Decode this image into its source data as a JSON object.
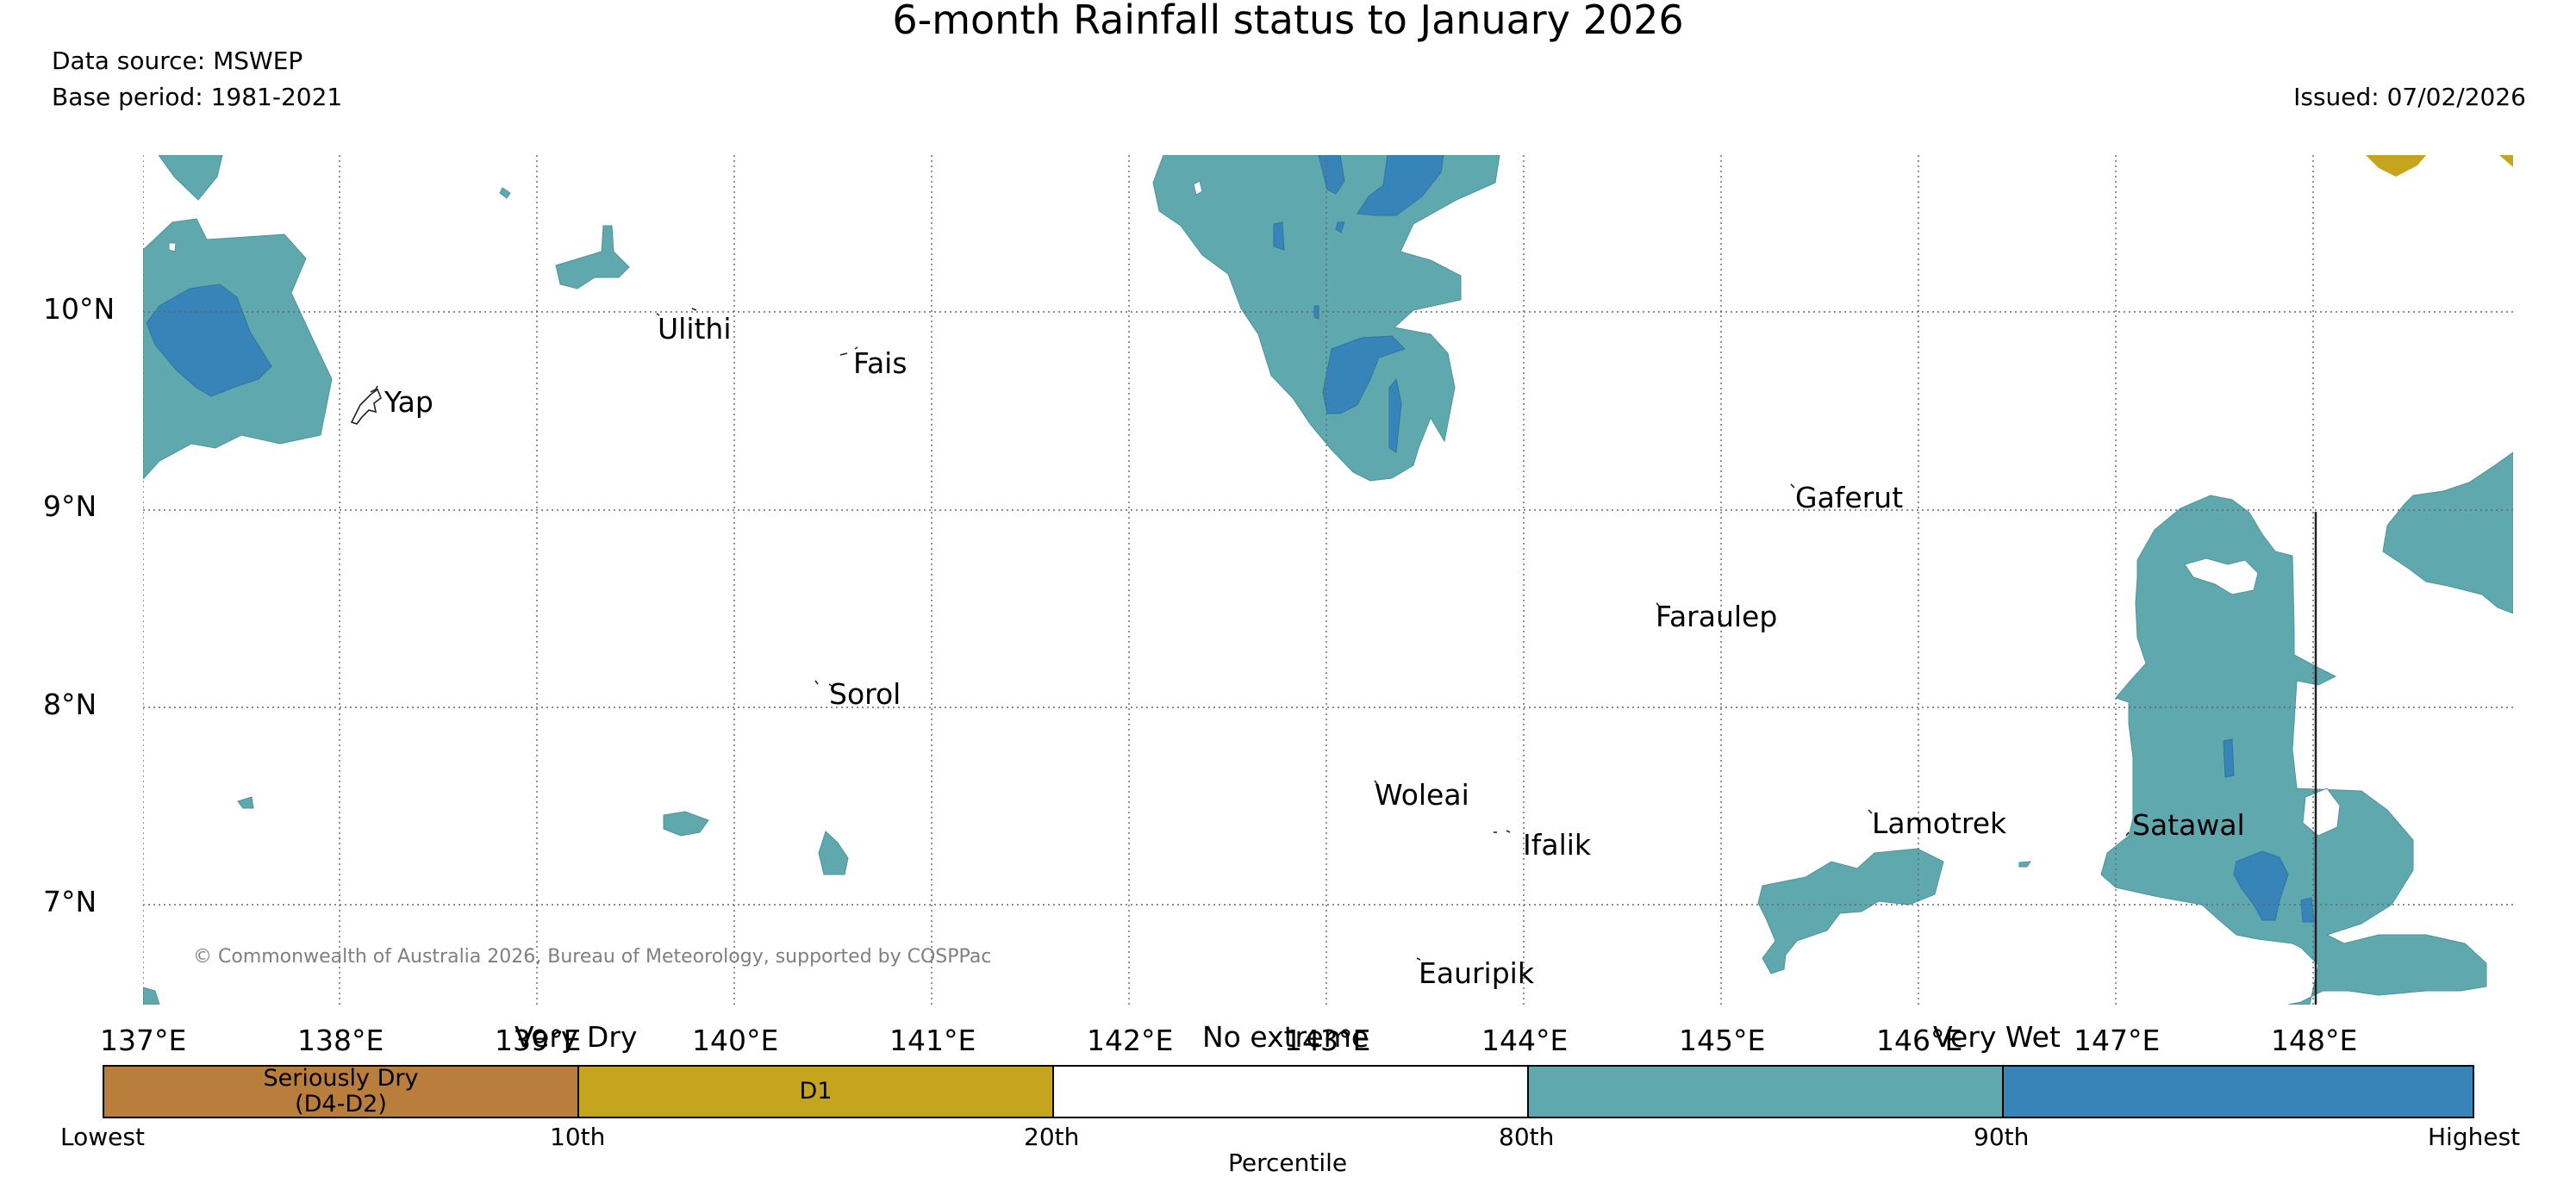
{
  "header": {
    "title": "6-month Rainfall status to January 2026",
    "data_source": "Data source: MSWEP",
    "base_period": "Base period: 1981-2021",
    "issued": "Issued: 07/02/2026"
  },
  "map": {
    "lat_labels": [
      "10°N",
      "9°N",
      "8°N",
      "7°N"
    ],
    "lon_labels": [
      "137°E",
      "138°E",
      "139°E",
      "140°E",
      "141°E",
      "142°E",
      "143°E",
      "144°E",
      "145°E",
      "146°E",
      "147°E",
      "148°E"
    ],
    "places": {
      "yap": "Yap",
      "ulithi": "Ulithi",
      "fais": "Fais",
      "gaferut": "Gaferut",
      "faraulep": "Faraulep",
      "sorol": "Sorol",
      "woleai": "Woleai",
      "ifalik": "Ifalik",
      "lamotrek": "Lamotrek",
      "satawal": "Satawal",
      "eauripik": "Eauripik"
    },
    "copyright": "© Commonwealth of Australia 2026, Bureau of Meteorology, supported by COSPPac"
  },
  "legend": {
    "categories": {
      "very_dry": "Very Dry",
      "no_extreme": "No extreme",
      "very_wet": "Very Wet"
    },
    "segments": [
      {
        "line1": "Seriously Dry",
        "line2": "(D4-D2)",
        "color": "#b97e3b"
      },
      {
        "line1": "D1",
        "line2": "",
        "color": "#c6a51e"
      },
      {
        "line1": "",
        "line2": "",
        "color": "#ffffff"
      },
      {
        "line1": "",
        "line2": "",
        "color": "#5ea8ae"
      },
      {
        "line1": "",
        "line2": "",
        "color": "#3784b9"
      }
    ],
    "percentile_ticks": {
      "lowest": "Lowest",
      "p10": "10th",
      "p20": "20th",
      "p80": "80th",
      "p90": "90th",
      "highest": "Highest"
    },
    "axis_label": "Percentile"
  },
  "colors": {
    "wet": "#5ea8ae",
    "very_wet": "#3784b9",
    "d1": "#c6a51e",
    "seriously_dry": "#b97e3b"
  }
}
